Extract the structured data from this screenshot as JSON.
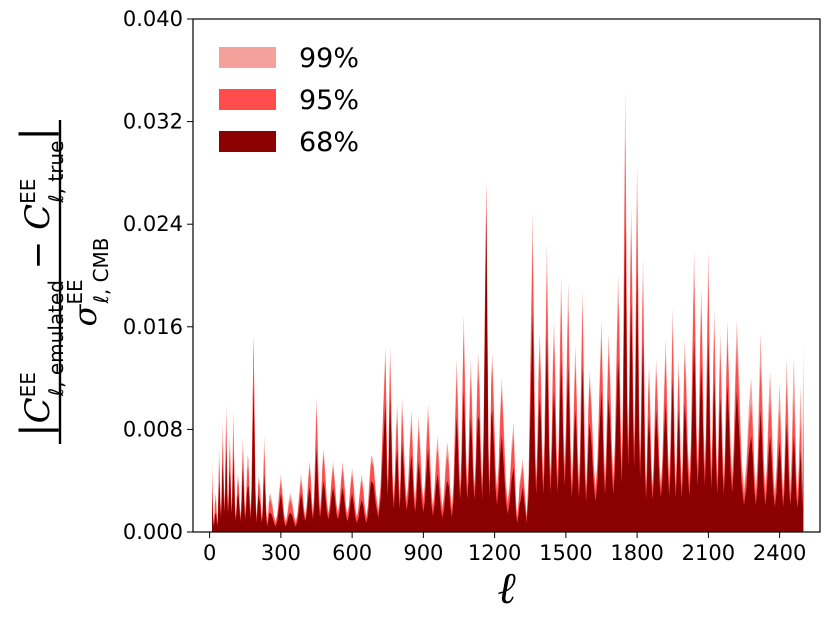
{
  "chart_data": {
    "type": "area",
    "xlabel": "ℓ",
    "ylabel": {
      "num_bar": "|",
      "c1": "C",
      "c1_sup": "EE",
      "c1_sub": "ℓ, emulated",
      "minus": " − ",
      "c2": "C",
      "c2_sup": "EE",
      "c2_sub": "ℓ, true",
      "den": "σ",
      "den_sup": "EE",
      "den_sub": "ℓ, CMB"
    },
    "xlim": [
      -70,
      2570
    ],
    "ylim": [
      0,
      0.04
    ],
    "x_ticks": [
      0,
      300,
      600,
      900,
      1200,
      1500,
      1800,
      2100,
      2400
    ],
    "y_ticks": [
      0.0,
      0.008,
      0.016,
      0.024,
      0.032,
      0.04
    ],
    "y_tick_labels": [
      "0.000",
      "0.008",
      "0.016",
      "0.024",
      "0.032",
      "0.040"
    ],
    "legend_position": "top-left",
    "grid": false,
    "x_range": [
      10,
      2500
    ],
    "series": [
      {
        "name": "99%",
        "color": "#f4a19c",
        "peaks": [
          [
            10,
            0.0055
          ],
          [
            25,
            0.003
          ],
          [
            40,
            0.0065
          ],
          [
            55,
            0.0085
          ],
          [
            70,
            0.01
          ],
          [
            85,
            0.0075
          ],
          [
            100,
            0.0095
          ],
          [
            120,
            0.0045
          ],
          [
            140,
            0.0075
          ],
          [
            160,
            0.006
          ],
          [
            185,
            0.0155
          ],
          [
            210,
            0.004
          ],
          [
            230,
            0.0075
          ],
          [
            255,
            0.003
          ],
          [
            300,
            0.0045
          ],
          [
            340,
            0.003
          ],
          [
            385,
            0.0045
          ],
          [
            420,
            0.0055
          ],
          [
            450,
            0.0105
          ],
          [
            480,
            0.0065
          ],
          [
            520,
            0.0055
          ],
          [
            560,
            0.0055
          ],
          [
            600,
            0.005
          ],
          [
            640,
            0.0045
          ],
          [
            680,
            0.006
          ],
          [
            740,
            0.0145
          ],
          [
            760,
            0.0145
          ],
          [
            790,
            0.01
          ],
          [
            810,
            0.0105
          ],
          [
            850,
            0.0095
          ],
          [
            880,
            0.009
          ],
          [
            920,
            0.01
          ],
          [
            960,
            0.0075
          ],
          [
            1000,
            0.007
          ],
          [
            1040,
            0.0135
          ],
          [
            1070,
            0.017
          ],
          [
            1100,
            0.0135
          ],
          [
            1130,
            0.014
          ],
          [
            1165,
            0.0275
          ],
          [
            1190,
            0.014
          ],
          [
            1230,
            0.012
          ],
          [
            1280,
            0.0085
          ],
          [
            1310,
            0.0045
          ],
          [
            1360,
            0.025
          ],
          [
            1390,
            0.0155
          ],
          [
            1420,
            0.0225
          ],
          [
            1450,
            0.0165
          ],
          [
            1480,
            0.02
          ],
          [
            1510,
            0.0195
          ],
          [
            1540,
            0.0145
          ],
          [
            1570,
            0.019
          ],
          [
            1600,
            0.0125
          ],
          [
            1650,
            0.0165
          ],
          [
            1680,
            0.0155
          ],
          [
            1720,
            0.02
          ],
          [
            1750,
            0.0345
          ],
          [
            1775,
            0.0255
          ],
          [
            1800,
            0.029
          ],
          [
            1825,
            0.0215
          ],
          [
            1850,
            0.013
          ],
          [
            1880,
            0.0135
          ],
          [
            1920,
            0.015
          ],
          [
            1950,
            0.0175
          ],
          [
            1975,
            0.0135
          ],
          [
            2000,
            0.015
          ],
          [
            2040,
            0.022
          ],
          [
            2070,
            0.019
          ],
          [
            2100,
            0.022
          ],
          [
            2125,
            0.0175
          ],
          [
            2150,
            0.0155
          ],
          [
            2180,
            0.0165
          ],
          [
            2220,
            0.0165
          ],
          [
            2280,
            0.012
          ],
          [
            2320,
            0.0155
          ],
          [
            2360,
            0.0125
          ],
          [
            2400,
            0.0115
          ],
          [
            2430,
            0.0135
          ],
          [
            2460,
            0.0135
          ],
          [
            2490,
            0.0115
          ],
          [
            2500,
            0.015
          ]
        ]
      },
      {
        "name": "95%",
        "color": "#ff4d4d",
        "peaks": [
          [
            10,
            0.0045
          ],
          [
            25,
            0.0025
          ],
          [
            40,
            0.0055
          ],
          [
            55,
            0.007
          ],
          [
            70,
            0.009
          ],
          [
            85,
            0.0065
          ],
          [
            100,
            0.008
          ],
          [
            120,
            0.004
          ],
          [
            140,
            0.0065
          ],
          [
            160,
            0.005
          ],
          [
            185,
            0.015
          ],
          [
            210,
            0.0035
          ],
          [
            230,
            0.0065
          ],
          [
            255,
            0.0025
          ],
          [
            300,
            0.004
          ],
          [
            340,
            0.0025
          ],
          [
            385,
            0.004
          ],
          [
            420,
            0.005
          ],
          [
            450,
            0.0095
          ],
          [
            480,
            0.006
          ],
          [
            520,
            0.005
          ],
          [
            560,
            0.005
          ],
          [
            600,
            0.0045
          ],
          [
            640,
            0.004
          ],
          [
            680,
            0.0055
          ],
          [
            740,
            0.0135
          ],
          [
            760,
            0.0135
          ],
          [
            790,
            0.009
          ],
          [
            810,
            0.0095
          ],
          [
            850,
            0.0085
          ],
          [
            880,
            0.008
          ],
          [
            920,
            0.009
          ],
          [
            960,
            0.0065
          ],
          [
            1000,
            0.006
          ],
          [
            1040,
            0.012
          ],
          [
            1070,
            0.0155
          ],
          [
            1100,
            0.012
          ],
          [
            1130,
            0.0125
          ],
          [
            1165,
            0.027
          ],
          [
            1190,
            0.013
          ],
          [
            1230,
            0.011
          ],
          [
            1280,
            0.0075
          ],
          [
            1310,
            0.004
          ],
          [
            1360,
            0.0225
          ],
          [
            1390,
            0.014
          ],
          [
            1420,
            0.0205
          ],
          [
            1450,
            0.015
          ],
          [
            1480,
            0.018
          ],
          [
            1510,
            0.0175
          ],
          [
            1540,
            0.013
          ],
          [
            1570,
            0.0175
          ],
          [
            1600,
            0.0115
          ],
          [
            1650,
            0.015
          ],
          [
            1680,
            0.014
          ],
          [
            1720,
            0.018
          ],
          [
            1750,
            0.031
          ],
          [
            1775,
            0.0235
          ],
          [
            1800,
            0.0265
          ],
          [
            1825,
            0.0195
          ],
          [
            1850,
            0.012
          ],
          [
            1880,
            0.0125
          ],
          [
            1920,
            0.0135
          ],
          [
            1950,
            0.016
          ],
          [
            1975,
            0.0125
          ],
          [
            2000,
            0.0135
          ],
          [
            2040,
            0.02
          ],
          [
            2070,
            0.0175
          ],
          [
            2100,
            0.02
          ],
          [
            2125,
            0.016
          ],
          [
            2150,
            0.014
          ],
          [
            2180,
            0.015
          ],
          [
            2220,
            0.0145
          ],
          [
            2280,
            0.01
          ],
          [
            2320,
            0.013
          ],
          [
            2360,
            0.0105
          ],
          [
            2400,
            0.0095
          ],
          [
            2430,
            0.0115
          ],
          [
            2460,
            0.0105
          ],
          [
            2490,
            0.009
          ],
          [
            2500,
            0.0125
          ]
        ]
      },
      {
        "name": "68%",
        "color": "#8b0000",
        "peaks": [
          [
            10,
            0.003
          ],
          [
            25,
            0.0015
          ],
          [
            40,
            0.004
          ],
          [
            55,
            0.0055
          ],
          [
            70,
            0.0065
          ],
          [
            85,
            0.005
          ],
          [
            100,
            0.006
          ],
          [
            120,
            0.003
          ],
          [
            140,
            0.005
          ],
          [
            160,
            0.0035
          ],
          [
            185,
            0.0115
          ],
          [
            210,
            0.0025
          ],
          [
            230,
            0.0045
          ],
          [
            255,
            0.0015
          ],
          [
            300,
            0.003
          ],
          [
            340,
            0.0015
          ],
          [
            385,
            0.003
          ],
          [
            420,
            0.0035
          ],
          [
            450,
            0.0065
          ],
          [
            480,
            0.004
          ],
          [
            520,
            0.0035
          ],
          [
            560,
            0.0035
          ],
          [
            600,
            0.003
          ],
          [
            640,
            0.0025
          ],
          [
            680,
            0.004
          ],
          [
            740,
            0.01
          ],
          [
            760,
            0.0105
          ],
          [
            790,
            0.0065
          ],
          [
            810,
            0.007
          ],
          [
            850,
            0.006
          ],
          [
            880,
            0.0055
          ],
          [
            920,
            0.0065
          ],
          [
            960,
            0.0045
          ],
          [
            1000,
            0.004
          ],
          [
            1040,
            0.009
          ],
          [
            1070,
            0.011
          ],
          [
            1100,
            0.009
          ],
          [
            1130,
            0.009
          ],
          [
            1165,
            0.025
          ],
          [
            1190,
            0.0095
          ],
          [
            1230,
            0.0075
          ],
          [
            1280,
            0.005
          ],
          [
            1310,
            0.0025
          ],
          [
            1360,
            0.017
          ],
          [
            1390,
            0.0105
          ],
          [
            1420,
            0.0155
          ],
          [
            1450,
            0.011
          ],
          [
            1480,
            0.0135
          ],
          [
            1510,
            0.013
          ],
          [
            1540,
            0.0095
          ],
          [
            1570,
            0.013
          ],
          [
            1600,
            0.0085
          ],
          [
            1650,
            0.011
          ],
          [
            1680,
            0.0105
          ],
          [
            1720,
            0.0135
          ],
          [
            1750,
            0.024
          ],
          [
            1775,
            0.018
          ],
          [
            1800,
            0.0205
          ],
          [
            1825,
            0.015
          ],
          [
            1850,
            0.009
          ],
          [
            1880,
            0.0095
          ],
          [
            1920,
            0.01
          ],
          [
            1950,
            0.012
          ],
          [
            1975,
            0.0095
          ],
          [
            2000,
            0.01
          ],
          [
            2040,
            0.015
          ],
          [
            2070,
            0.013
          ],
          [
            2100,
            0.015
          ],
          [
            2125,
            0.012
          ],
          [
            2150,
            0.0105
          ],
          [
            2180,
            0.0115
          ],
          [
            2220,
            0.011
          ],
          [
            2280,
            0.0075
          ],
          [
            2320,
            0.0095
          ],
          [
            2360,
            0.0075
          ],
          [
            2400,
            0.007
          ],
          [
            2430,
            0.0085
          ],
          [
            2460,
            0.0075
          ],
          [
            2490,
            0.0065
          ],
          [
            2500,
            0.0085
          ]
        ]
      }
    ]
  }
}
